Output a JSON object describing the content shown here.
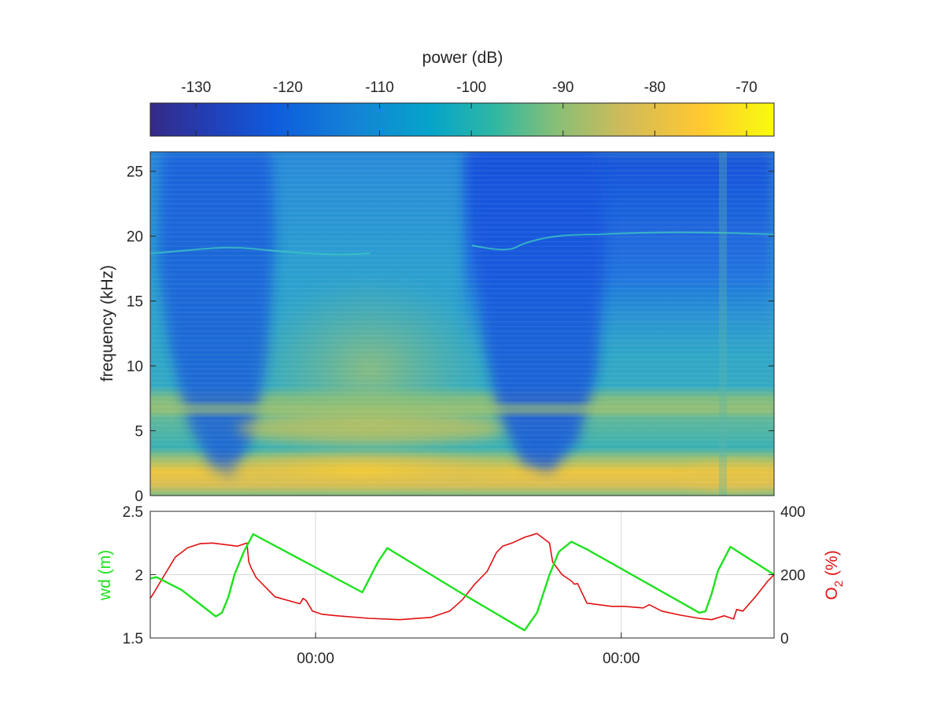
{
  "colors": {
    "wd_line": "#1ee11e",
    "o2_line": "#e01010",
    "axis": "#262626",
    "grid": "#d8d8d8",
    "colormap": [
      "#352a87",
      "#0f5cdd",
      "#1481d6",
      "#06a4ca",
      "#2eb7a4",
      "#87bf77",
      "#d1bb59",
      "#fec832",
      "#f9fb0e"
    ]
  },
  "chart_data": [
    {
      "type": "colorbar",
      "title": "power (dB)",
      "range": [
        -135,
        -67
      ],
      "ticks": [
        -130,
        -120,
        -110,
        -100,
        -90,
        -80,
        -70
      ],
      "tick_labels": [
        "-130",
        "-120",
        "-110",
        "-100",
        "-90",
        "-80",
        "-70"
      ]
    },
    {
      "type": "heatmap",
      "title": "",
      "xlabel": "",
      "ylabel": "frequency (kHz)",
      "ylim": [
        0,
        26.5
      ],
      "yticks": [
        0,
        5,
        10,
        15,
        20,
        25
      ],
      "ytick_labels": [
        "0",
        "5",
        "10",
        "15",
        "20",
        "25"
      ],
      "color_unit": "power (dB)",
      "description_free": true
    },
    {
      "type": "line",
      "xlim": [
        0,
        1
      ],
      "xtick_positions": [
        0.265,
        0.755
      ],
      "xtick_labels": [
        "00:00",
        "00:00"
      ],
      "grid": true,
      "left_axis": {
        "label": "wd (m)",
        "ylim": [
          1.5,
          2.5
        ],
        "ticks": [
          "1.5",
          "2",
          "2.5"
        ],
        "tick_values": [
          1.5,
          2,
          2.5
        ]
      },
      "right_axis": {
        "label_main": "O",
        "label_sub": "2",
        "label_tail": " (%)",
        "ylim": [
          0,
          400
        ],
        "ticks": [
          "0",
          "200",
          "400"
        ],
        "tick_values": [
          0,
          200,
          400
        ]
      },
      "series": [
        {
          "name": "wd",
          "axis": "left",
          "x": [
            0.0,
            0.01,
            0.05,
            0.1,
            0.105,
            0.115,
            0.125,
            0.135,
            0.15,
            0.165,
            0.34,
            0.365,
            0.38,
            0.4,
            0.5,
            0.6,
            0.62,
            0.64,
            0.655,
            0.675,
            0.7,
            0.88,
            0.89,
            0.9,
            0.91,
            0.93,
            1.0
          ],
          "y": [
            1.97,
            1.98,
            1.88,
            1.69,
            1.67,
            1.7,
            1.82,
            2.0,
            2.18,
            2.32,
            1.86,
            2.1,
            2.21,
            2.15,
            1.85,
            1.56,
            1.7,
            2.0,
            2.18,
            2.26,
            2.2,
            1.7,
            1.71,
            1.85,
            2.03,
            2.22,
            2.0
          ]
        },
        {
          "name": "O2",
          "axis": "right",
          "x": [
            0.0,
            0.005,
            0.02,
            0.04,
            0.06,
            0.08,
            0.1,
            0.12,
            0.14,
            0.155,
            0.158,
            0.162,
            0.17,
            0.2,
            0.24,
            0.245,
            0.25,
            0.26,
            0.275,
            0.3,
            0.35,
            0.4,
            0.45,
            0.48,
            0.5,
            0.52,
            0.54,
            0.555,
            0.565,
            0.58,
            0.6,
            0.62,
            0.64,
            0.645,
            0.66,
            0.675,
            0.68,
            0.685,
            0.7,
            0.74,
            0.76,
            0.79,
            0.8,
            0.82,
            0.85,
            0.88,
            0.9,
            0.92,
            0.935,
            0.94,
            0.95,
            0.97,
            0.99,
            1.0
          ],
          "y": [
            125,
            140,
            190,
            255,
            285,
            298,
            300,
            295,
            290,
            300,
            240,
            220,
            190,
            130,
            108,
            125,
            118,
            85,
            75,
            70,
            62,
            58,
            65,
            85,
            120,
            170,
            210,
            270,
            290,
            300,
            318,
            330,
            300,
            240,
            200,
            180,
            170,
            172,
            110,
            100,
            100,
            95,
            105,
            85,
            72,
            62,
            58,
            70,
            60,
            90,
            85,
            130,
            180,
            200
          ]
        }
      ]
    }
  ]
}
